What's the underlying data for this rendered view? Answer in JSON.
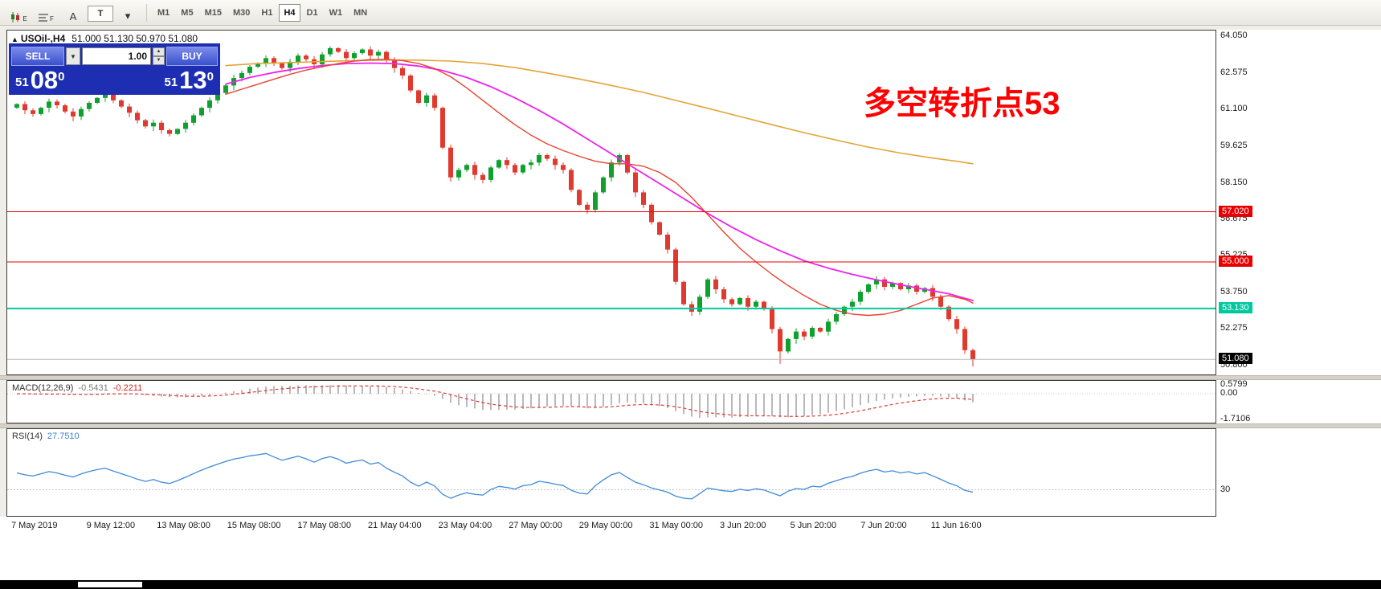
{
  "toolbar": {
    "icons": [
      {
        "name": "chart-template-icon",
        "glyph": "E"
      },
      {
        "name": "profiles-icon",
        "glyph": "F"
      },
      {
        "name": "cursor-icon",
        "glyph": "A"
      },
      {
        "name": "text-tool-icon",
        "glyph": "T"
      },
      {
        "name": "drawing-tools-icon",
        "glyph": "▾"
      }
    ],
    "timeframes": [
      "M1",
      "M5",
      "M15",
      "M30",
      "H1",
      "H4",
      "D1",
      "W1",
      "MN"
    ],
    "active_timeframe": "H4"
  },
  "window": {
    "collapse_arrow": "▲",
    "symbol_title": "USOil-,H4",
    "ohlc_text": "51.000 51.130 50.970 51.080"
  },
  "trade_panel": {
    "sell_label": "SELL",
    "buy_label": "BUY",
    "volume": "1.00",
    "combo_arrow": "▼",
    "spin_up": "▲",
    "spin_down": "▼",
    "sell_price": {
      "small": "51",
      "big": "08",
      "sup": "0"
    },
    "buy_price": {
      "small": "51",
      "big": "13",
      "sup": "0"
    }
  },
  "annotation": {
    "text": "多空转折点53",
    "color": "#ff0000"
  },
  "price_axis": {
    "labels": [
      {
        "price": 64.05,
        "text": "64.050"
      },
      {
        "price": 62.575,
        "text": "62.575"
      },
      {
        "price": 61.1,
        "text": "61.100"
      },
      {
        "price": 59.625,
        "text": "59.625"
      },
      {
        "price": 58.15,
        "text": "58.150"
      },
      {
        "price": 56.675,
        "text": "56.675"
      },
      {
        "price": 55.225,
        "text": "55.225"
      },
      {
        "price": 53.75,
        "text": "53.750"
      },
      {
        "price": 52.275,
        "text": "52.275"
      },
      {
        "price": 50.8,
        "text": "50.800"
      }
    ],
    "level_boxes": [
      {
        "price": 57.02,
        "text": "57.020",
        "bg": "#e80000"
      },
      {
        "price": 55.0,
        "text": "55.000",
        "bg": "#e80000"
      },
      {
        "price": 53.13,
        "text": "53.130",
        "bg": "#00c9a0"
      },
      {
        "price": 51.08,
        "text": "51.080",
        "bg": "#000000"
      }
    ]
  },
  "macd_panel": {
    "label": "MACD(12,26,9)",
    "main_value": "-0.5431",
    "signal_value": "-0.2211",
    "axis_labels": [
      {
        "v": 0.5799,
        "text": "0.5799"
      },
      {
        "v": 0,
        "text": "0.00"
      },
      {
        "v": -1.7106,
        "text": "-1.7106"
      }
    ]
  },
  "rsi_panel": {
    "label": "RSI(14)",
    "value": "27.7510",
    "levels": [
      {
        "v": 30,
        "text": "30"
      }
    ]
  },
  "time_axis": {
    "labels": [
      "7 May 2019",
      "9 May 12:00",
      "13 May 08:00",
      "15 May 08:00",
      "17 May 08:00",
      "21 May 04:00",
      "23 May 04:00",
      "27 May 00:00",
      "29 May 00:00",
      "31 May 00:00",
      "3 Jun 20:00",
      "5 Jun 20:00",
      "7 Jun 20:00",
      "11 Jun 16:00"
    ]
  },
  "chart_data": {
    "type": "candlestick",
    "symbol": "USOil-",
    "timeframe": "H4",
    "title": "USOil- H4 with MACD(12,26,9) and RSI(14)",
    "ohlc_current": {
      "open": 51.0,
      "high": 51.13,
      "low": 50.97,
      "close": 51.08
    },
    "y_axis": {
      "tick_step": 1.475,
      "labels": [
        64.05,
        62.575,
        61.1,
        59.625,
        58.15,
        56.675,
        55.225,
        53.75,
        52.275,
        50.8
      ]
    },
    "first_open": 61.2,
    "closes": [
      61.35,
      61.1,
      60.95,
      61.2,
      61.45,
      61.3,
      61.05,
      60.85,
      61.15,
      61.4,
      61.6,
      61.75,
      61.5,
      61.25,
      61.0,
      60.7,
      60.45,
      60.6,
      60.3,
      60.15,
      60.35,
      60.6,
      60.9,
      61.2,
      61.5,
      61.8,
      62.1,
      62.4,
      62.6,
      62.85,
      63.0,
      63.2,
      63.0,
      62.8,
      63.05,
      63.3,
      63.15,
      62.95,
      63.35,
      63.6,
      63.45,
      63.2,
      63.4,
      63.55,
      63.3,
      63.45,
      63.1,
      62.8,
      62.5,
      61.9,
      61.4,
      61.7,
      61.2,
      59.6,
      58.4,
      58.7,
      58.9,
      58.5,
      58.3,
      58.8,
      59.1,
      58.9,
      58.6,
      58.9,
      59.0,
      59.3,
      59.15,
      58.9,
      58.7,
      57.9,
      57.3,
      57.1,
      57.8,
      58.4,
      59.0,
      59.3,
      58.6,
      57.8,
      57.3,
      56.6,
      56.1,
      55.5,
      54.2,
      53.3,
      53.0,
      53.6,
      54.3,
      53.9,
      53.5,
      53.3,
      53.55,
      53.2,
      53.4,
      53.1,
      52.3,
      51.4,
      51.9,
      52.2,
      52.0,
      52.35,
      52.2,
      52.6,
      52.9,
      53.2,
      53.4,
      53.8,
      54.1,
      54.3,
      54.0,
      54.15,
      53.9,
      54.05,
      53.8,
      53.95,
      53.6,
      53.2,
      52.7,
      52.3,
      51.45,
      51.08
    ],
    "wick_overrides": [
      {
        "index": 95,
        "low": 50.9
      },
      {
        "index": 119,
        "low": 50.8
      }
    ],
    "candle_colors": {
      "up": "#0fa02e",
      "down": "#e0392e"
    },
    "horizontal_lines": [
      {
        "price": 57.02,
        "color": "#e80000",
        "width": 1
      },
      {
        "price": 55.0,
        "color": "#e80000",
        "width": 1
      },
      {
        "price": 53.13,
        "color": "#00c9a0",
        "width": 2
      },
      {
        "price": 51.08,
        "color": "#b9b9b9",
        "width": 1
      }
    ],
    "moving_averages": [
      {
        "name": "ma-slow-orange",
        "color": "#e3a437",
        "width": 1.6,
        "points": [
          [
            26,
            62.9
          ],
          [
            30,
            62.98
          ],
          [
            34,
            63.02
          ],
          [
            38,
            63.06
          ],
          [
            42,
            63.1
          ],
          [
            46,
            63.12
          ],
          [
            50,
            63.12
          ],
          [
            54,
            63.08
          ],
          [
            58,
            62.98
          ],
          [
            62,
            62.82
          ],
          [
            66,
            62.6
          ],
          [
            70,
            62.36
          ],
          [
            74,
            62.1
          ],
          [
            78,
            61.82
          ],
          [
            82,
            61.5
          ],
          [
            86,
            61.18
          ],
          [
            90,
            60.85
          ],
          [
            94,
            60.52
          ],
          [
            98,
            60.2
          ],
          [
            102,
            59.9
          ],
          [
            106,
            59.62
          ],
          [
            110,
            59.38
          ],
          [
            114,
            59.18
          ],
          [
            117,
            59.05
          ],
          [
            119,
            58.95
          ]
        ]
      },
      {
        "name": "ma-medium-magenta",
        "color": "#ee22ee",
        "width": 1.8,
        "points": [
          [
            26,
            62.15
          ],
          [
            29,
            62.42
          ],
          [
            32,
            62.62
          ],
          [
            35,
            62.78
          ],
          [
            38,
            62.9
          ],
          [
            41,
            62.98
          ],
          [
            44,
            63.0
          ],
          [
            47,
            62.98
          ],
          [
            50,
            62.88
          ],
          [
            53,
            62.7
          ],
          [
            56,
            62.42
          ],
          [
            59,
            62.05
          ],
          [
            62,
            61.6
          ],
          [
            65,
            61.1
          ],
          [
            68,
            60.55
          ],
          [
            71,
            59.95
          ],
          [
            74,
            59.35
          ],
          [
            77,
            58.75
          ],
          [
            80,
            58.15
          ],
          [
            83,
            57.55
          ],
          [
            86,
            56.95
          ],
          [
            89,
            56.4
          ],
          [
            92,
            55.9
          ],
          [
            95,
            55.45
          ],
          [
            98,
            55.05
          ],
          [
            101,
            54.75
          ],
          [
            104,
            54.5
          ],
          [
            107,
            54.28
          ],
          [
            110,
            54.08
          ],
          [
            113,
            53.9
          ],
          [
            116,
            53.72
          ],
          [
            119,
            53.45
          ]
        ]
      },
      {
        "name": "ma-fast-red",
        "color": "#e8432e",
        "width": 1.4,
        "points": [
          [
            26,
            61.75
          ],
          [
            28,
            61.95
          ],
          [
            30,
            62.15
          ],
          [
            32,
            62.35
          ],
          [
            34,
            62.55
          ],
          [
            36,
            62.72
          ],
          [
            38,
            62.85
          ],
          [
            40,
            62.98
          ],
          [
            42,
            63.08
          ],
          [
            44,
            63.14
          ],
          [
            46,
            63.15
          ],
          [
            48,
            63.1
          ],
          [
            50,
            62.98
          ],
          [
            52,
            62.78
          ],
          [
            54,
            62.45
          ],
          [
            56,
            62.0
          ],
          [
            58,
            61.5
          ],
          [
            60,
            61.0
          ],
          [
            62,
            60.52
          ],
          [
            64,
            60.1
          ],
          [
            66,
            59.75
          ],
          [
            68,
            59.48
          ],
          [
            70,
            59.25
          ],
          [
            72,
            59.05
          ],
          [
            74,
            58.95
          ],
          [
            76,
            58.95
          ],
          [
            78,
            58.85
          ],
          [
            80,
            58.6
          ],
          [
            82,
            58.2
          ],
          [
            84,
            57.6
          ],
          [
            86,
            56.9
          ],
          [
            88,
            56.2
          ],
          [
            90,
            55.55
          ],
          [
            92,
            55.0
          ],
          [
            94,
            54.5
          ],
          [
            96,
            54.05
          ],
          [
            98,
            53.65
          ],
          [
            100,
            53.3
          ],
          [
            102,
            53.05
          ],
          [
            104,
            52.9
          ],
          [
            106,
            52.85
          ],
          [
            108,
            52.9
          ],
          [
            110,
            53.05
          ],
          [
            112,
            53.3
          ],
          [
            114,
            53.55
          ],
          [
            116,
            53.65
          ],
          [
            118,
            53.5
          ],
          [
            119,
            53.35
          ]
        ]
      }
    ],
    "indicators": {
      "macd": {
        "fast": 12,
        "slow": 26,
        "signal": 9,
        "current_main": -0.5431,
        "current_signal": -0.2211,
        "axis_range": [
          -1.7106,
          0.5799
        ]
      },
      "rsi": {
        "period": 14,
        "current": 27.751,
        "level": 30
      }
    }
  }
}
